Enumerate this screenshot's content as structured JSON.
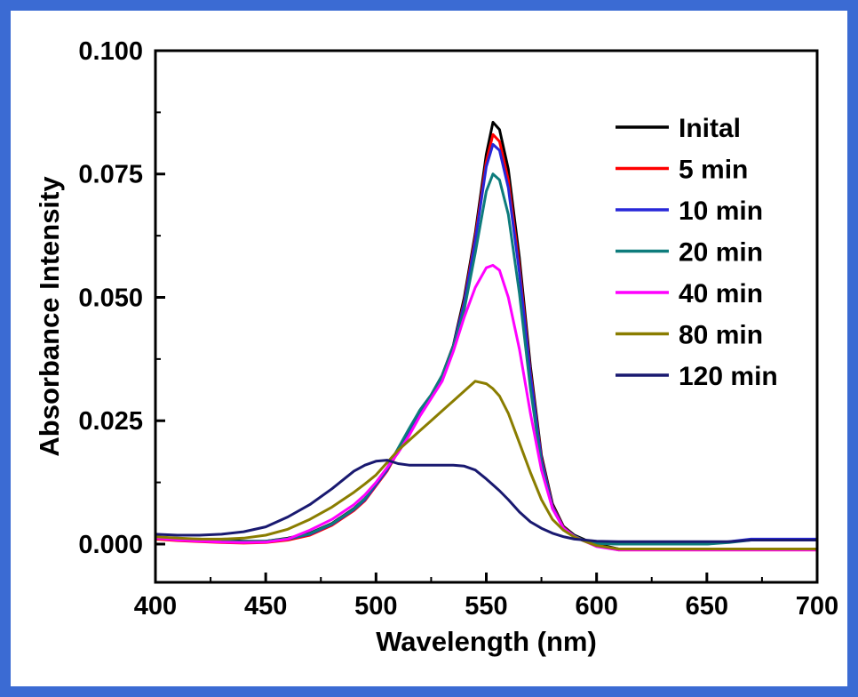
{
  "frame": {
    "border_color": "#3b6bd3",
    "background": "#ffffff"
  },
  "chart_data": {
    "type": "line",
    "title": "",
    "xlabel": "Wavelength (nm)",
    "ylabel": "Absorbance Intensity",
    "xlim": [
      400,
      700
    ],
    "ylim": [
      -0.00775,
      0.1
    ],
    "grid": false,
    "legend_position": "top-right",
    "x_ticks": [
      400,
      450,
      500,
      550,
      600,
      650,
      700
    ],
    "x_tick_labels": [
      "400",
      "450",
      "500",
      "550",
      "600",
      "650",
      "700"
    ],
    "x_minor_ticks": [
      425,
      475,
      525,
      575,
      625,
      675
    ],
    "y_ticks": [
      0.0,
      0.025,
      0.05,
      0.075,
      0.1
    ],
    "y_tick_labels": [
      "0.000",
      "0.025",
      "0.050",
      "0.075",
      "0.100"
    ],
    "y_minor_ticks": [
      0.0125,
      0.0375,
      0.0625,
      0.0875
    ],
    "x": [
      400,
      410,
      420,
      430,
      440,
      450,
      460,
      470,
      480,
      490,
      495,
      500,
      505,
      510,
      515,
      520,
      525,
      530,
      535,
      540,
      545,
      550,
      553,
      556,
      560,
      565,
      570,
      575,
      580,
      585,
      590,
      595,
      600,
      610,
      620,
      630,
      640,
      650,
      660,
      670,
      680,
      690,
      700
    ],
    "series": [
      {
        "name": "Inital",
        "color": "#000000",
        "values": [
          0.0015,
          0.001,
          0.001,
          0.0008,
          0.0006,
          0.0006,
          0.0012,
          0.0022,
          0.0042,
          0.0072,
          0.0092,
          0.0122,
          0.0152,
          0.0192,
          0.0232,
          0.0272,
          0.0302,
          0.0342,
          0.0402,
          0.05,
          0.063,
          0.079,
          0.0855,
          0.084,
          0.076,
          0.058,
          0.036,
          0.018,
          0.0082,
          0.0036,
          0.0018,
          0.0008,
          0.0,
          -0.001,
          -0.001,
          -0.001,
          -0.001,
          -0.001,
          -0.001,
          -0.001,
          -0.001,
          -0.001,
          -0.001
        ]
      },
      {
        "name": "5 min",
        "color": "#ff0000",
        "values": [
          0.001,
          0.0007,
          0.0005,
          0.0003,
          0.0002,
          0.0003,
          0.0008,
          0.0018,
          0.0038,
          0.0068,
          0.0088,
          0.0118,
          0.0148,
          0.0188,
          0.0228,
          0.0268,
          0.0298,
          0.0338,
          0.0398,
          0.0492,
          0.0622,
          0.0775,
          0.083,
          0.0816,
          0.0738,
          0.0562,
          0.0348,
          0.0174,
          0.0078,
          0.0034,
          0.0016,
          0.0006,
          -0.0002,
          -0.0012,
          -0.0012,
          -0.0012,
          -0.0012,
          -0.0012,
          -0.0012,
          -0.0012,
          -0.0012,
          -0.0012,
          -0.0012
        ]
      },
      {
        "name": "10 min",
        "color": "#2727d8",
        "values": [
          0.0012,
          0.0009,
          0.0008,
          0.0006,
          0.0005,
          0.0005,
          0.001,
          0.002,
          0.004,
          0.007,
          0.009,
          0.012,
          0.015,
          0.019,
          0.023,
          0.027,
          0.03,
          0.034,
          0.04,
          0.0488,
          0.0615,
          0.0765,
          0.081,
          0.0798,
          0.0722,
          0.055,
          0.0342,
          0.017,
          0.0076,
          0.0033,
          0.0016,
          0.0006,
          0.0002,
          0.0,
          0.0,
          0.0,
          0.0,
          0.0,
          0.0005,
          0.001,
          0.001,
          0.001,
          0.001
        ]
      },
      {
        "name": "20 min",
        "color": "#0e7c7c",
        "values": [
          0.0012,
          0.0009,
          0.0008,
          0.0006,
          0.0005,
          0.0006,
          0.0011,
          0.0021,
          0.0041,
          0.0071,
          0.0092,
          0.0124,
          0.0154,
          0.0194,
          0.0234,
          0.0272,
          0.0302,
          0.0342,
          0.04,
          0.0475,
          0.059,
          0.0715,
          0.075,
          0.0738,
          0.0668,
          0.0508,
          0.0315,
          0.016,
          0.0072,
          0.0032,
          0.0016,
          0.0006,
          0.0001,
          0.0,
          0.0,
          0.0,
          0.0,
          0.0,
          0.0003,
          0.0008,
          0.0008,
          0.0008,
          0.0008
        ]
      },
      {
        "name": "40 min",
        "color": "#ff00ff",
        "values": [
          0.0012,
          0.0008,
          0.0006,
          0.0004,
          0.0003,
          0.0004,
          0.001,
          0.0028,
          0.005,
          0.008,
          0.01,
          0.0125,
          0.0155,
          0.0185,
          0.022,
          0.026,
          0.0295,
          0.033,
          0.039,
          0.046,
          0.052,
          0.056,
          0.0565,
          0.0555,
          0.05,
          0.0395,
          0.0265,
          0.015,
          0.0072,
          0.0032,
          0.0015,
          0.0005,
          -0.0005,
          -0.0012,
          -0.0012,
          -0.0012,
          -0.0012,
          -0.0012,
          -0.0012,
          -0.0012,
          -0.0012,
          -0.0012,
          -0.0012
        ]
      },
      {
        "name": "80 min",
        "color": "#8a7d00",
        "values": [
          0.0015,
          0.0012,
          0.001,
          0.001,
          0.0012,
          0.0018,
          0.003,
          0.005,
          0.0075,
          0.0105,
          0.0122,
          0.014,
          0.0165,
          0.019,
          0.021,
          0.023,
          0.025,
          0.027,
          0.029,
          0.031,
          0.033,
          0.0325,
          0.0315,
          0.03,
          0.0265,
          0.0205,
          0.0145,
          0.009,
          0.005,
          0.0028,
          0.0014,
          0.0005,
          -0.0003,
          -0.001,
          -0.001,
          -0.001,
          -0.001,
          -0.001,
          -0.001,
          -0.001,
          -0.001,
          -0.001,
          -0.001
        ]
      },
      {
        "name": "120 min",
        "color": "#191970",
        "values": [
          0.002,
          0.0018,
          0.0018,
          0.002,
          0.0025,
          0.0035,
          0.0055,
          0.008,
          0.0112,
          0.0148,
          0.016,
          0.0168,
          0.017,
          0.0163,
          0.016,
          0.016,
          0.016,
          0.016,
          0.016,
          0.0158,
          0.015,
          0.0132,
          0.012,
          0.0108,
          0.009,
          0.0065,
          0.0045,
          0.0032,
          0.0022,
          0.0015,
          0.001,
          0.0008,
          0.0006,
          0.0005,
          0.0005,
          0.0005,
          0.0005,
          0.0005,
          0.0005,
          0.0008,
          0.0008,
          0.0008,
          0.0008
        ]
      }
    ]
  }
}
